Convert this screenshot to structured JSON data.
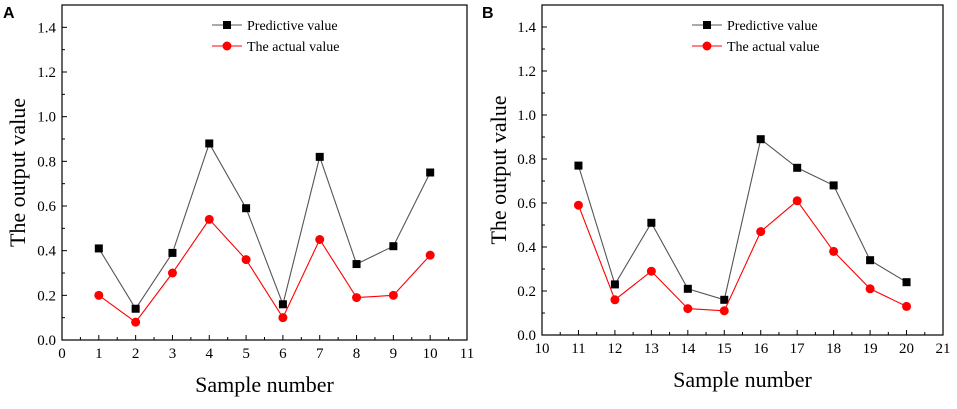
{
  "chart_data": [
    {
      "panel": "A",
      "type": "line",
      "xlabel": "Sample number",
      "ylabel": "The output value",
      "xlim": [
        0,
        11
      ],
      "ylim": [
        0.0,
        1.5
      ],
      "xticks": [
        0,
        1,
        2,
        3,
        4,
        5,
        6,
        7,
        8,
        9,
        10,
        11
      ],
      "yticks": [
        "0.0",
        "0.2",
        "0.4",
        "0.6",
        "0.8",
        "1.0",
        "1.2",
        "1.4"
      ],
      "x": [
        1,
        2,
        3,
        4,
        5,
        6,
        7,
        8,
        9,
        10
      ],
      "series": [
        {
          "name": "Predictive value",
          "color": "#555555",
          "marker": "square",
          "marker_color": "#000000",
          "values": [
            0.41,
            0.14,
            0.39,
            0.88,
            0.59,
            0.16,
            0.82,
            0.34,
            0.42,
            0.75
          ]
        },
        {
          "name": "The actual value",
          "color": "#ff0000",
          "marker": "circle",
          "marker_color": "#ff0000",
          "values": [
            0.2,
            0.08,
            0.3,
            0.54,
            0.36,
            0.1,
            0.45,
            0.19,
            0.2,
            0.38
          ]
        }
      ],
      "legend": "top-right"
    },
    {
      "panel": "B",
      "type": "line",
      "xlabel": "Sample number",
      "ylabel": "The output value",
      "xlim": [
        10,
        21
      ],
      "ylim": [
        0.0,
        1.5
      ],
      "xticks": [
        10,
        11,
        12,
        13,
        14,
        15,
        16,
        17,
        18,
        19,
        20,
        21
      ],
      "yticks": [
        "0.0",
        "0.2",
        "0.4",
        "0.6",
        "0.8",
        "1.0",
        "1.2",
        "1.4"
      ],
      "x": [
        11,
        12,
        13,
        14,
        15,
        16,
        17,
        18,
        19,
        20
      ],
      "series": [
        {
          "name": "Predictive value",
          "color": "#555555",
          "marker": "square",
          "marker_color": "#000000",
          "values": [
            0.77,
            0.23,
            0.51,
            0.21,
            0.16,
            0.89,
            0.76,
            0.68,
            0.34,
            0.24
          ]
        },
        {
          "name": "The actual value",
          "color": "#ff0000",
          "marker": "circle",
          "marker_color": "#ff0000",
          "values": [
            0.59,
            0.16,
            0.29,
            0.12,
            0.11,
            0.47,
            0.61,
            0.38,
            0.21,
            0.13
          ]
        }
      ],
      "legend": "top-right"
    }
  ]
}
